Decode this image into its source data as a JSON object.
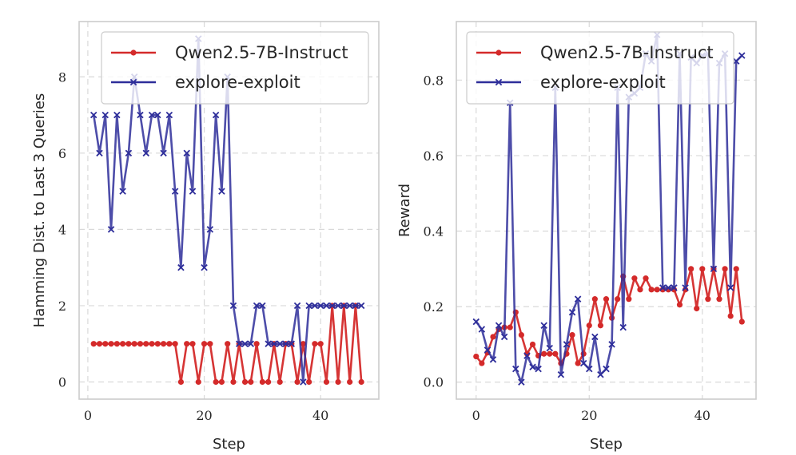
{
  "chart_data": [
    {
      "type": "line",
      "title": "",
      "xlabel": "Step",
      "ylabel": "Hamming Dist. to Last 3 Queries",
      "xlim": [
        -1.5,
        50
      ],
      "ylim": [
        -0.45,
        9.45
      ],
      "xticks": [
        0,
        20,
        40
      ],
      "yticks": [
        0,
        2,
        4,
        6,
        8
      ],
      "grid": true,
      "legend_position": "top-right",
      "series": [
        {
          "name": "Qwen2.5-7B-Instruct",
          "color": "#d42a2a",
          "marker": "dot",
          "x": [
            1,
            2,
            3,
            4,
            5,
            6,
            7,
            8,
            9,
            10,
            11,
            12,
            13,
            14,
            15,
            16,
            17,
            18,
            19,
            20,
            21,
            22,
            23,
            24,
            25,
            26,
            27,
            28,
            29,
            30,
            31,
            32,
            33,
            34,
            35,
            36,
            37,
            38,
            39,
            40,
            41,
            42,
            43,
            44,
            45,
            46,
            47
          ],
          "y": [
            1,
            1,
            1,
            1,
            1,
            1,
            1,
            1,
            1,
            1,
            1,
            1,
            1,
            1,
            1,
            0,
            1,
            1,
            0,
            1,
            1,
            0,
            0,
            1,
            0,
            1,
            0,
            0,
            1,
            0,
            0,
            1,
            0,
            1,
            1,
            0,
            1,
            0,
            1,
            1,
            0,
            2,
            0,
            2,
            0,
            2,
            0
          ]
        },
        {
          "name": "explore-exploit",
          "color": "#2e2e9a",
          "marker": "x",
          "x": [
            1,
            2,
            3,
            4,
            5,
            6,
            7,
            8,
            9,
            10,
            11,
            12,
            13,
            14,
            15,
            16,
            17,
            18,
            19,
            20,
            21,
            22,
            23,
            24,
            25,
            26,
            27,
            28,
            29,
            30,
            31,
            32,
            33,
            34,
            35,
            36,
            37,
            38,
            39,
            40,
            41,
            42,
            43,
            44,
            45,
            46,
            47
          ],
          "y": [
            7,
            6,
            7,
            4,
            7,
            5,
            6,
            8,
            7,
            6,
            7,
            7,
            6,
            7,
            5,
            3,
            6,
            5,
            9,
            3,
            4,
            7,
            5,
            8,
            2,
            1,
            1,
            1,
            2,
            2,
            1,
            1,
            1,
            1,
            1,
            2,
            0,
            2,
            2,
            2,
            2,
            2,
            2,
            2,
            2,
            2,
            2
          ]
        }
      ]
    },
    {
      "type": "line",
      "title": "",
      "xlabel": "Step",
      "ylabel": "Reward",
      "xlim": [
        -3.5,
        49.5
      ],
      "ylim": [
        -0.045,
        0.955
      ],
      "xticks": [
        0,
        20,
        40
      ],
      "yticks": [
        0.0,
        0.2,
        0.4,
        0.6,
        0.8
      ],
      "ytick_labels": [
        "0.0",
        "0.2",
        "0.4",
        "0.6",
        "0.8"
      ],
      "grid": true,
      "legend_position": "top-left",
      "series": [
        {
          "name": "Qwen2.5-7B-Instruct",
          "color": "#d42a2a",
          "marker": "dot",
          "x": [
            0,
            1,
            2,
            3,
            4,
            5,
            6,
            7,
            8,
            9,
            10,
            11,
            12,
            13,
            14,
            15,
            16,
            17,
            18,
            19,
            20,
            21,
            22,
            23,
            24,
            25,
            26,
            27,
            28,
            29,
            30,
            31,
            32,
            33,
            34,
            35,
            36,
            37,
            38,
            39,
            40,
            41,
            42,
            43,
            44,
            45,
            46,
            47
          ],
          "y": [
            0.068,
            0.05,
            0.078,
            0.12,
            0.14,
            0.145,
            0.145,
            0.185,
            0.125,
            0.075,
            0.1,
            0.07,
            0.075,
            0.075,
            0.075,
            0.05,
            0.075,
            0.125,
            0.05,
            0.075,
            0.15,
            0.22,
            0.15,
            0.22,
            0.17,
            0.22,
            0.28,
            0.22,
            0.275,
            0.245,
            0.275,
            0.245,
            0.245,
            0.245,
            0.245,
            0.245,
            0.205,
            0.245,
            0.3,
            0.195,
            0.3,
            0.22,
            0.3,
            0.22,
            0.3,
            0.175,
            0.3,
            0.16
          ]
        },
        {
          "name": "explore-exploit",
          "color": "#2e2e9a",
          "marker": "x",
          "x": [
            0,
            1,
            2,
            3,
            4,
            5,
            6,
            7,
            8,
            9,
            10,
            11,
            12,
            13,
            14,
            15,
            16,
            17,
            18,
            19,
            20,
            21,
            22,
            23,
            24,
            25,
            26,
            27,
            28,
            29,
            30,
            31,
            32,
            33,
            34,
            35,
            36,
            37,
            38,
            39,
            40,
            41,
            42,
            43,
            44,
            45,
            46,
            47
          ],
          "y": [
            0.16,
            0.14,
            0.085,
            0.06,
            0.15,
            0.12,
            0.74,
            0.035,
            0.0,
            0.07,
            0.04,
            0.035,
            0.15,
            0.09,
            0.78,
            0.02,
            0.1,
            0.185,
            0.22,
            0.05,
            0.035,
            0.12,
            0.02,
            0.035,
            0.1,
            0.78,
            0.145,
            0.755,
            0.765,
            0.78,
            0.87,
            0.85,
            0.92,
            0.25,
            0.25,
            0.25,
            0.87,
            0.25,
            0.86,
            0.845,
            0.865,
            0.87,
            0.3,
            0.845,
            0.87,
            0.25,
            0.85,
            0.865
          ]
        }
      ]
    }
  ]
}
